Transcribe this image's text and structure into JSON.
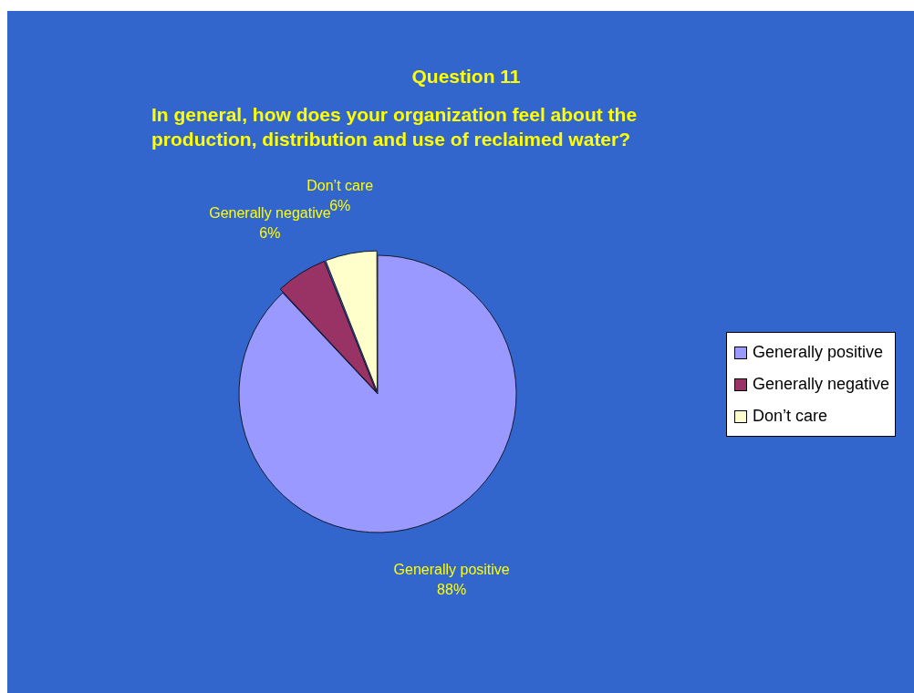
{
  "chart_data": {
    "type": "pie",
    "title": "Question 11",
    "subtitle": "In general, how does your organization feel about the production, distribution and use of reclaimed water?",
    "categories": [
      "Generally positive",
      "Generally negative",
      "Don’t care"
    ],
    "values": [
      88,
      6,
      6
    ],
    "value_labels": [
      "88%",
      "6%",
      "6%"
    ],
    "colors": [
      "#9999ff",
      "#993366",
      "#ffffcc"
    ],
    "legend": "right"
  }
}
